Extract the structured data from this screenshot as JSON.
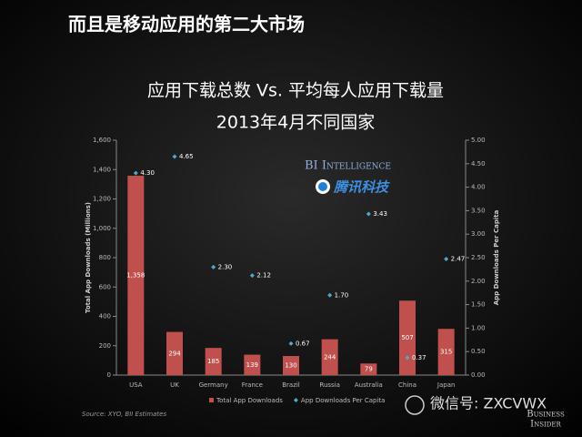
{
  "slide_title": "而且是移动应用的第二大市场",
  "chart_data": {
    "type": "bar",
    "title": "应用下载总数 Vs. 平均每人应用下载量",
    "subtitle": "2013年4月不同国家",
    "y_label": "Total App Downloads (Millions)",
    "y2_label": "App Downloads Per Capita",
    "categories": [
      "USA",
      "UK",
      "Germany",
      "France",
      "Brazil",
      "Russia",
      "Australia",
      "China",
      "Japan"
    ],
    "series": [
      {
        "name": "Total App Downloads",
        "type": "bar",
        "color": "#c0504d",
        "values": [
          1358,
          294,
          185,
          139,
          130,
          244,
          79,
          507,
          315
        ],
        "value_labels": [
          "1,358",
          "294",
          "185",
          "139",
          "130",
          "244",
          "79",
          "507",
          "315"
        ]
      },
      {
        "name": "App Downloads Per Capita",
        "type": "scatter",
        "axis": "y2",
        "color": "#4bacc6",
        "values": [
          4.3,
          4.65,
          2.3,
          2.12,
          0.67,
          1.7,
          3.43,
          0.37,
          2.47
        ],
        "value_labels": [
          "4.30",
          "4.65",
          "2.30",
          "2.12",
          "0.67",
          "1.70",
          "3.43",
          "0.37",
          "2.47"
        ]
      }
    ],
    "ylim": [
      0,
      1600
    ],
    "yticks": [
      0,
      200,
      400,
      600,
      800,
      {
        "value": 1000,
        "label": "1,000"
      },
      {
        "value": 1200,
        "label": "1,200"
      },
      {
        "value": 1400,
        "label": "1,400"
      },
      {
        "value": 1600,
        "label": "1,600"
      }
    ],
    "y2lim": [
      0,
      5
    ],
    "y2ticks": [
      {
        "value": 0,
        "label": "0.00"
      },
      {
        "value": 0.5,
        "label": "0.50"
      },
      {
        "value": 1,
        "label": "1.00"
      },
      {
        "value": 1.5,
        "label": "1.50"
      },
      {
        "value": 2,
        "label": "2.00"
      },
      {
        "value": 2.5,
        "label": "2.50"
      },
      {
        "value": 3,
        "label": "3.00"
      },
      {
        "value": 3.5,
        "label": "3.50"
      },
      {
        "value": 4,
        "label": "4.00"
      },
      {
        "value": 4.5,
        "label": "4.50"
      },
      {
        "value": 5,
        "label": "5.00"
      }
    ],
    "legend": "bottom",
    "source": "Source: XYO, BII Estimates"
  },
  "overlay": {
    "logo_bi": "BI Intelligence",
    "logo_tencent": "腾讯科技",
    "logo_insider_1": "Business",
    "logo_insider_2": "Insider",
    "watermark": "微信号: ZXCVWX"
  }
}
